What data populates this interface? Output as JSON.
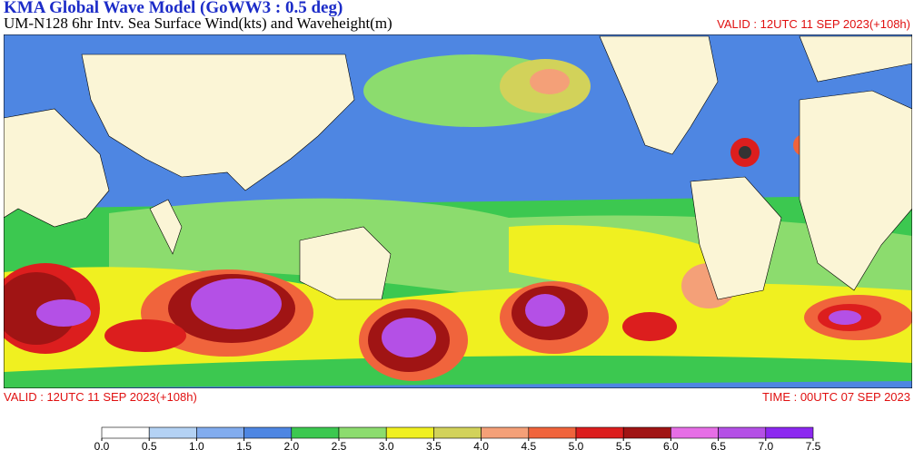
{
  "header": {
    "title": "KMA  Global Wave Model (GoWW3 : 0.5 deg)",
    "subtitle": "UM-N128  6hr Intv. Sea Surface Wind(kts) and Waveheight(m)",
    "valid": "VALID : 12UTC 11 SEP 2023(+108h)"
  },
  "footer": {
    "valid": "VALID : 12UTC 11 SEP 2023(+108h)",
    "time": "TIME : 00UTC 07 SEP 2023"
  },
  "colorbar": {
    "ticks": [
      {
        "value": 0,
        "label": "0.0"
      },
      0.5,
      {
        "value": 1,
        "label": "1.0"
      },
      1.5,
      {
        "value": 2,
        "label": "2.0"
      },
      2.5,
      {
        "value": 3,
        "label": "3.0"
      },
      3.5,
      {
        "value": 4,
        "label": "4.0"
      },
      4.5,
      {
        "value": 5,
        "label": "5.0"
      },
      5.5,
      {
        "value": 6,
        "label": "6.0"
      },
      6.5,
      {
        "value": 7,
        "label": "7.0"
      },
      7.5
    ],
    "colors": [
      "#ffffff",
      "#b4d2f4",
      "#82acee",
      "#4e86e2",
      "#3cc850",
      "#8cdc6e",
      "#f0f020",
      "#d2d25a",
      "#f4a078",
      "#f0643c",
      "#dc1e1e",
      "#a01414",
      "#e66ee6",
      "#b450e6",
      "#8c28f0"
    ]
  }
}
